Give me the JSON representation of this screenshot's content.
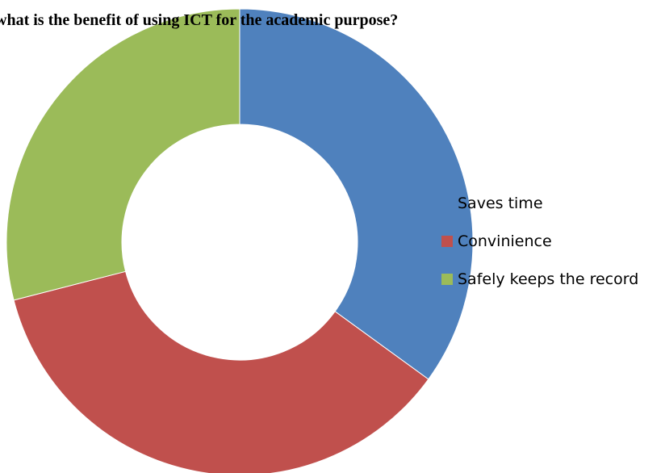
{
  "chart_data": {
    "type": "pie",
    "title": "what is the benefit of using ICT for the academic purpose?",
    "donut": true,
    "categories": [
      "Saves time",
      "Convinience",
      "Safely keeps the record"
    ],
    "values": [
      35,
      36,
      29
    ],
    "colors": [
      "#4F81BD",
      "#C0504D",
      "#9BBB59"
    ],
    "legend_position": "right"
  }
}
